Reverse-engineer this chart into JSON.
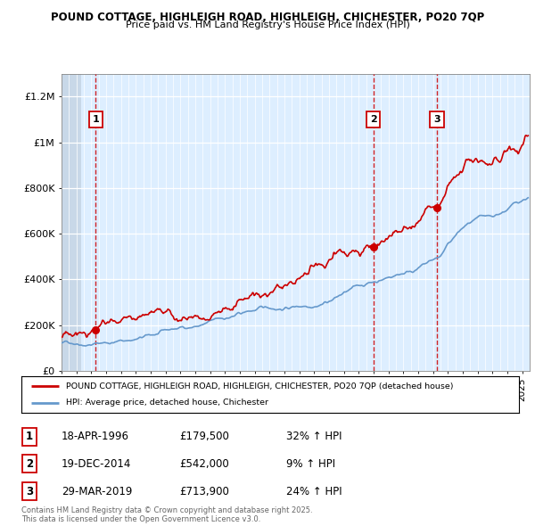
{
  "title_line1": "POUND COTTAGE, HIGHLEIGH ROAD, HIGHLEIGH, CHICHESTER, PO20 7QP",
  "title_line2": "Price paid vs. HM Land Registry's House Price Index (HPI)",
  "xlim_start": 1994.0,
  "xlim_end": 2025.5,
  "ylim_min": 0,
  "ylim_max": 1300000,
  "yticks": [
    0,
    200000,
    400000,
    600000,
    800000,
    1000000,
    1200000
  ],
  "ytick_labels": [
    "£0",
    "£200K",
    "£400K",
    "£600K",
    "£800K",
    "£1M",
    "£1.2M"
  ],
  "bg_color": "#ddeeff",
  "hatch_end": 1995.3,
  "sale_dates": [
    1996.3,
    2014.97,
    2019.25
  ],
  "sale_prices": [
    179500,
    542000,
    713900
  ],
  "sale_labels": [
    "1",
    "2",
    "3"
  ],
  "legend_line1": "POUND COTTAGE, HIGHLEIGH ROAD, HIGHLEIGH, CHICHESTER, PO20 7QP (detached house)",
  "legend_line2": "HPI: Average price, detached house, Chichester",
  "table_rows": [
    [
      "1",
      "18-APR-1996",
      "£179,500",
      "32% ↑ HPI"
    ],
    [
      "2",
      "19-DEC-2014",
      "£542,000",
      "9% ↑ HPI"
    ],
    [
      "3",
      "29-MAR-2019",
      "£713,900",
      "24% ↑ HPI"
    ]
  ],
  "footer_text": "Contains HM Land Registry data © Crown copyright and database right 2025.\nThis data is licensed under the Open Government Licence v3.0.",
  "red_color": "#cc0000",
  "blue_color": "#6699cc"
}
